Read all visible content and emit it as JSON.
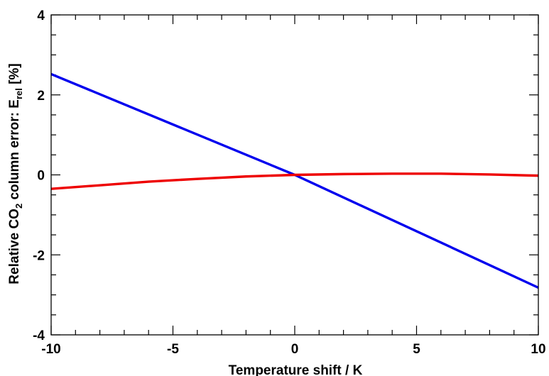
{
  "chart_data": {
    "type": "line",
    "xlabel": "Temperature shift / K",
    "ylabel": {
      "part1": "Relative CO",
      "sub1": "2",
      "part2": " column error: E",
      "sub2": "rel",
      "part3": " [%]"
    },
    "xlim": [
      -10,
      10
    ],
    "ylim": [
      -4,
      4
    ],
    "xticks": [
      -10,
      -5,
      0,
      5,
      10
    ],
    "xtick_labels": [
      "-10",
      "-5",
      "0",
      "5",
      "10"
    ],
    "yticks": [
      -4,
      -2,
      0,
      2,
      4
    ],
    "ytick_labels": [
      "-4",
      "-2",
      "0",
      "2",
      "4"
    ],
    "x_minor_step": 1,
    "y_minor_step": 0.5,
    "grid": false,
    "series": [
      {
        "color": "#0000ee",
        "x": [
          -10,
          0,
          10
        ],
        "y": [
          2.52,
          0.0,
          -2.82
        ]
      },
      {
        "color": "#ee0000",
        "x": [
          -10,
          -8,
          -6,
          -4,
          -2,
          0,
          2,
          4,
          6,
          8,
          10
        ],
        "y": [
          -0.35,
          -0.26,
          -0.17,
          -0.1,
          -0.04,
          0.0,
          0.02,
          0.03,
          0.03,
          0.01,
          -0.02
        ]
      }
    ]
  }
}
